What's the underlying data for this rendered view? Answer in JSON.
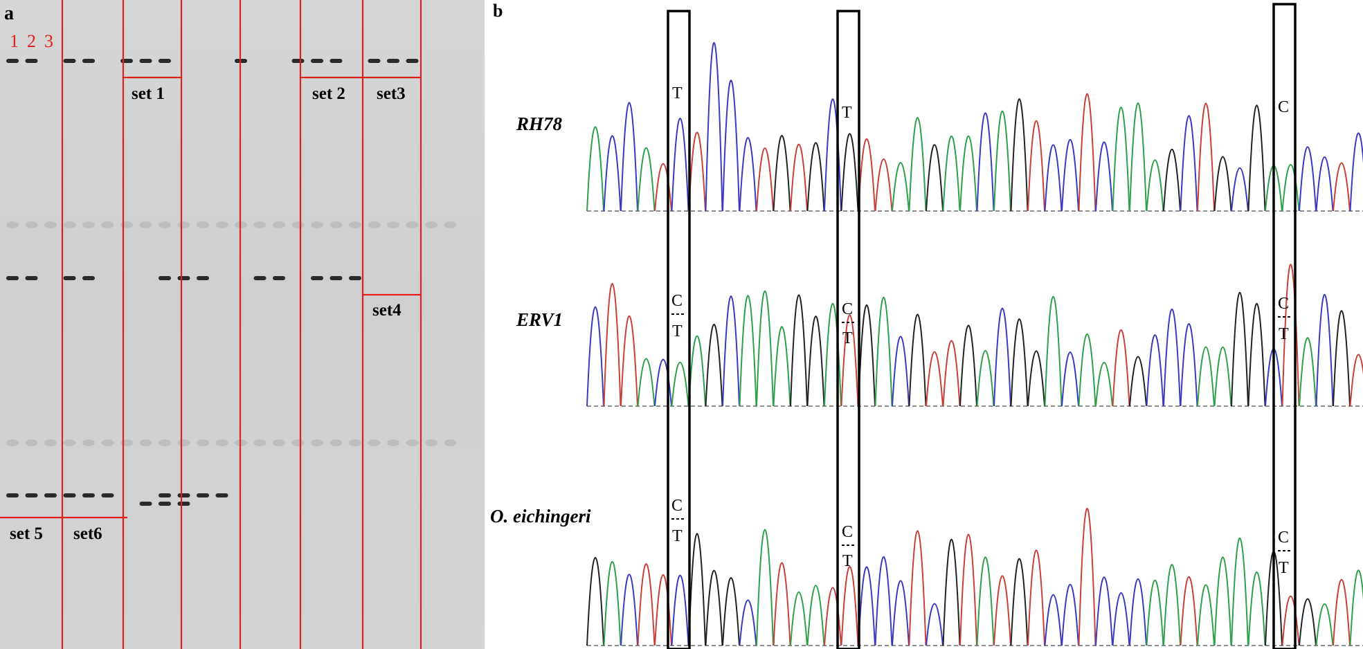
{
  "panel_a": {
    "letter": "a",
    "lane_numbers": [
      "1",
      "2",
      "3"
    ],
    "set_labels": [
      "set 1",
      "set 2",
      "set3",
      "set4",
      "set 5",
      "set6"
    ]
  },
  "panel_b": {
    "letter": "b",
    "sample_labels": [
      "RH78",
      "ERV1",
      "O. eichingeri"
    ],
    "row1_bases": [
      "T",
      "T",
      "C"
    ],
    "row2_bases": [
      "C",
      "T",
      "C",
      "T",
      "C",
      "T"
    ],
    "row3_bases": [
      "C",
      "T",
      "C",
      "T",
      "C",
      "T"
    ]
  },
  "colors": {
    "gel_lines": "#e0201e",
    "trace_blue": "#3a3ac0",
    "trace_green": "#2ea04a",
    "trace_red": "#c8403a",
    "trace_black": "#222222"
  }
}
